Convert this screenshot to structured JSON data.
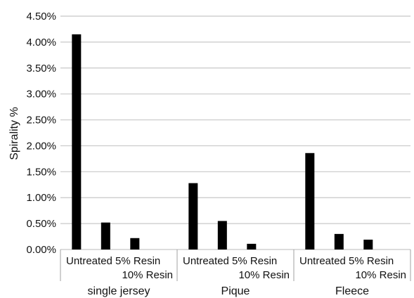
{
  "chart_data": {
    "type": "bar",
    "ylabel": "Spirality %",
    "ylim": [
      0,
      0.045
    ],
    "ytick_step": 0.005,
    "ytick_labels": [
      "0.00%",
      "0.50%",
      "1.00%",
      "1.50%",
      "2.00%",
      "2.50%",
      "3.00%",
      "3.50%",
      "4.00%",
      "4.50%"
    ],
    "grid": true,
    "legend": "none",
    "groups": [
      {
        "name": "single jersey",
        "categories": [
          "Untreated",
          "5% Resin",
          "10% Resin"
        ],
        "values": [
          0.0415,
          0.0052,
          0.0022
        ]
      },
      {
        "name": "Pique",
        "categories": [
          "Untreated",
          "5% Resin",
          "10% Resin"
        ],
        "values": [
          0.0128,
          0.0055,
          0.0011
        ]
      },
      {
        "name": "Fleece",
        "categories": [
          "Untreated",
          "5% Resin",
          "10% Resin"
        ],
        "values": [
          0.0186,
          0.003,
          0.0019
        ]
      }
    ],
    "colors": {
      "bar": "#000000",
      "grid": "#c8c8c8",
      "axis": "#a0a0a0"
    }
  }
}
